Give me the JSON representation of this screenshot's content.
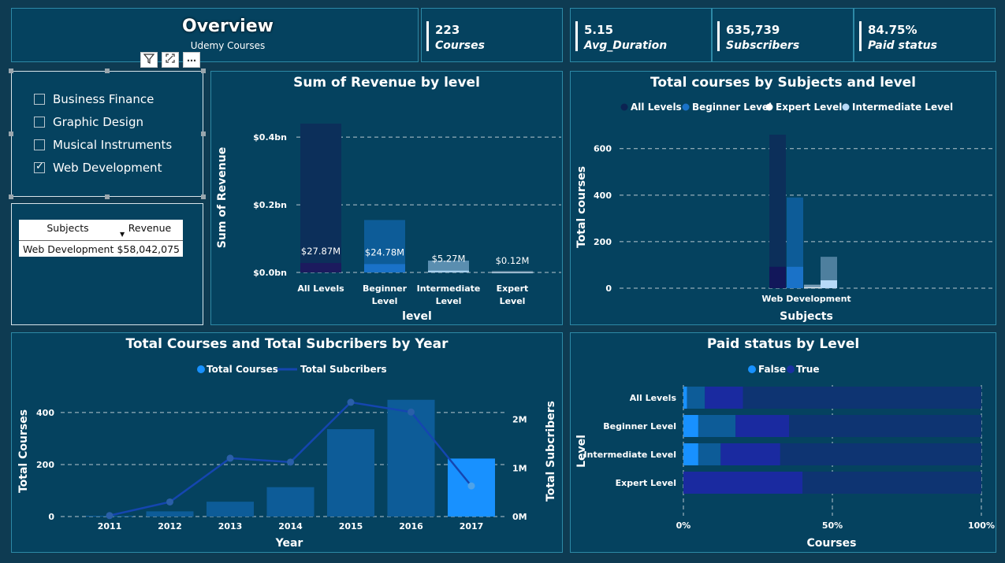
{
  "header": {
    "title": "Overview",
    "subtitle": "Udemy Courses"
  },
  "kpis": [
    {
      "value": "223",
      "label": "Courses"
    },
    {
      "value": "5.15",
      "label": "Avg_Duration"
    },
    {
      "value": "635,739",
      "label": "Subscribers"
    },
    {
      "value": "84.75%",
      "label": "Paid status"
    }
  ],
  "toolbar": {
    "filter_icon": "filter-icon",
    "focus_icon": "focus-mode-icon",
    "more_icon": "more-options-icon",
    "more_glyph": "⋯"
  },
  "slicer": {
    "items": [
      {
        "label": "Business Finance",
        "checked": false
      },
      {
        "label": "Graphic Design",
        "checked": false
      },
      {
        "label": "Musical Instruments",
        "checked": false
      },
      {
        "label": "Web Development",
        "checked": true
      }
    ]
  },
  "table": {
    "headers": [
      "Subjects",
      "Revenue"
    ],
    "rows": [
      [
        "Web Development",
        "$58,042,075"
      ]
    ]
  },
  "colors": {
    "navy": "#1c1a5e",
    "dark": "#0c2f5a",
    "blue": "#1a72c8",
    "mid": "#0d5c98",
    "light": "#5aa1d8",
    "bright": "#1891ff",
    "pale": "#b6d9f7",
    "grid": "#b8c7cf"
  },
  "chart_data": [
    {
      "type": "bar",
      "title": "Sum of Revenue by level",
      "xlabel": "level",
      "ylabel": "Sum of Revenue",
      "categories": [
        "All Levels",
        "Beginner Level",
        "Intermediate Level",
        "Expert Level"
      ],
      "total_values": [
        0.44,
        0.155,
        0.035,
        0.004
      ],
      "filtered_values": [
        0.02787,
        0.02478,
        0.00527,
        0.00012
      ],
      "data_labels": [
        "$27.87M",
        "$24.78M",
        "$5.27M",
        "$0.12M"
      ],
      "yticks": [
        "$0.0bn",
        "$0.2bn",
        "$0.4bn"
      ],
      "ytick_values": [
        0,
        0.2,
        0.4
      ],
      "ylim": [
        0,
        0.44
      ]
    },
    {
      "type": "bar",
      "title": "Total courses by Subjects and level",
      "xlabel": "Subjects",
      "ylabel": "Total courses",
      "categories": [
        "Web Development"
      ],
      "series": [
        {
          "name": "All Levels",
          "total": 660,
          "filtered": 92
        },
        {
          "name": "Beginner Level",
          "total": 390,
          "filtered": 92
        },
        {
          "name": "Expert Level",
          "total": 15,
          "filtered": 3
        },
        {
          "name": "Intermediate Level",
          "total": 135,
          "filtered": 34
        }
      ],
      "yticks": [
        0,
        200,
        400,
        600
      ],
      "ylim": [
        0,
        660
      ]
    },
    {
      "type": "bar",
      "title": "Total Courses and Total Subcribers by Year",
      "xlabel": "Year",
      "ylabel": "Total Courses",
      "y2label": "Total Subcribers",
      "categories": [
        "2011",
        "2012",
        "2013",
        "2014",
        "2015",
        "2016",
        "2017"
      ],
      "series": [
        {
          "name": "Total Courses",
          "type": "bar",
          "values": [
            3,
            20,
            57,
            113,
            336,
            449,
            223
          ]
        },
        {
          "name": "Total Subcribers",
          "type": "line",
          "values": [
            0.02,
            0.3,
            1.2,
            1.12,
            2.35,
            2.15,
            0.63
          ]
        }
      ],
      "yticks": [
        0,
        200,
        400
      ],
      "y2ticks": [
        "0M",
        "1M",
        "2M"
      ],
      "y2tick_values": [
        0,
        1,
        2
      ],
      "ylim": [
        0,
        430
      ],
      "y2lim": [
        0,
        2.3
      ]
    },
    {
      "type": "bar",
      "title": "Paid status by Level",
      "xlabel": "Courses",
      "ylabel": "Level",
      "categories": [
        "All Levels",
        "Beginner Level",
        "Intermediate Level",
        "Expert Level"
      ],
      "series": [
        {
          "name": "False",
          "segments": [
            [
              0,
              0.01,
              "bright"
            ],
            [
              0.01,
              0.07,
              "mid"
            ]
          ]
        },
        {
          "name": "True",
          "segments": [
            [
              0.07,
              0.2,
              "deep"
            ]
          ]
        }
      ],
      "bars": [
        [
          [
            0,
            0.012,
            "bright"
          ],
          [
            0.012,
            0.072,
            "mid"
          ],
          [
            0.072,
            0.2,
            "deep"
          ],
          [
            0.2,
            1,
            "dim"
          ]
        ],
        [
          [
            0,
            0.05,
            "bright"
          ],
          [
            0.05,
            0.175,
            "mid"
          ],
          [
            0.175,
            0.355,
            "deep"
          ],
          [
            0.355,
            1,
            "dim"
          ]
        ],
        [
          [
            0,
            0.05,
            "bright"
          ],
          [
            0.05,
            0.125,
            "mid"
          ],
          [
            0.125,
            0.325,
            "deep"
          ],
          [
            0.325,
            1,
            "dim"
          ]
        ],
        [
          [
            0,
            0.4,
            "deep"
          ],
          [
            0.4,
            1,
            "dim"
          ]
        ]
      ],
      "xticks": [
        "0%",
        "50%",
        "100%"
      ],
      "xtick_values": [
        0,
        0.5,
        1
      ],
      "xlim": [
        0,
        1
      ]
    }
  ]
}
